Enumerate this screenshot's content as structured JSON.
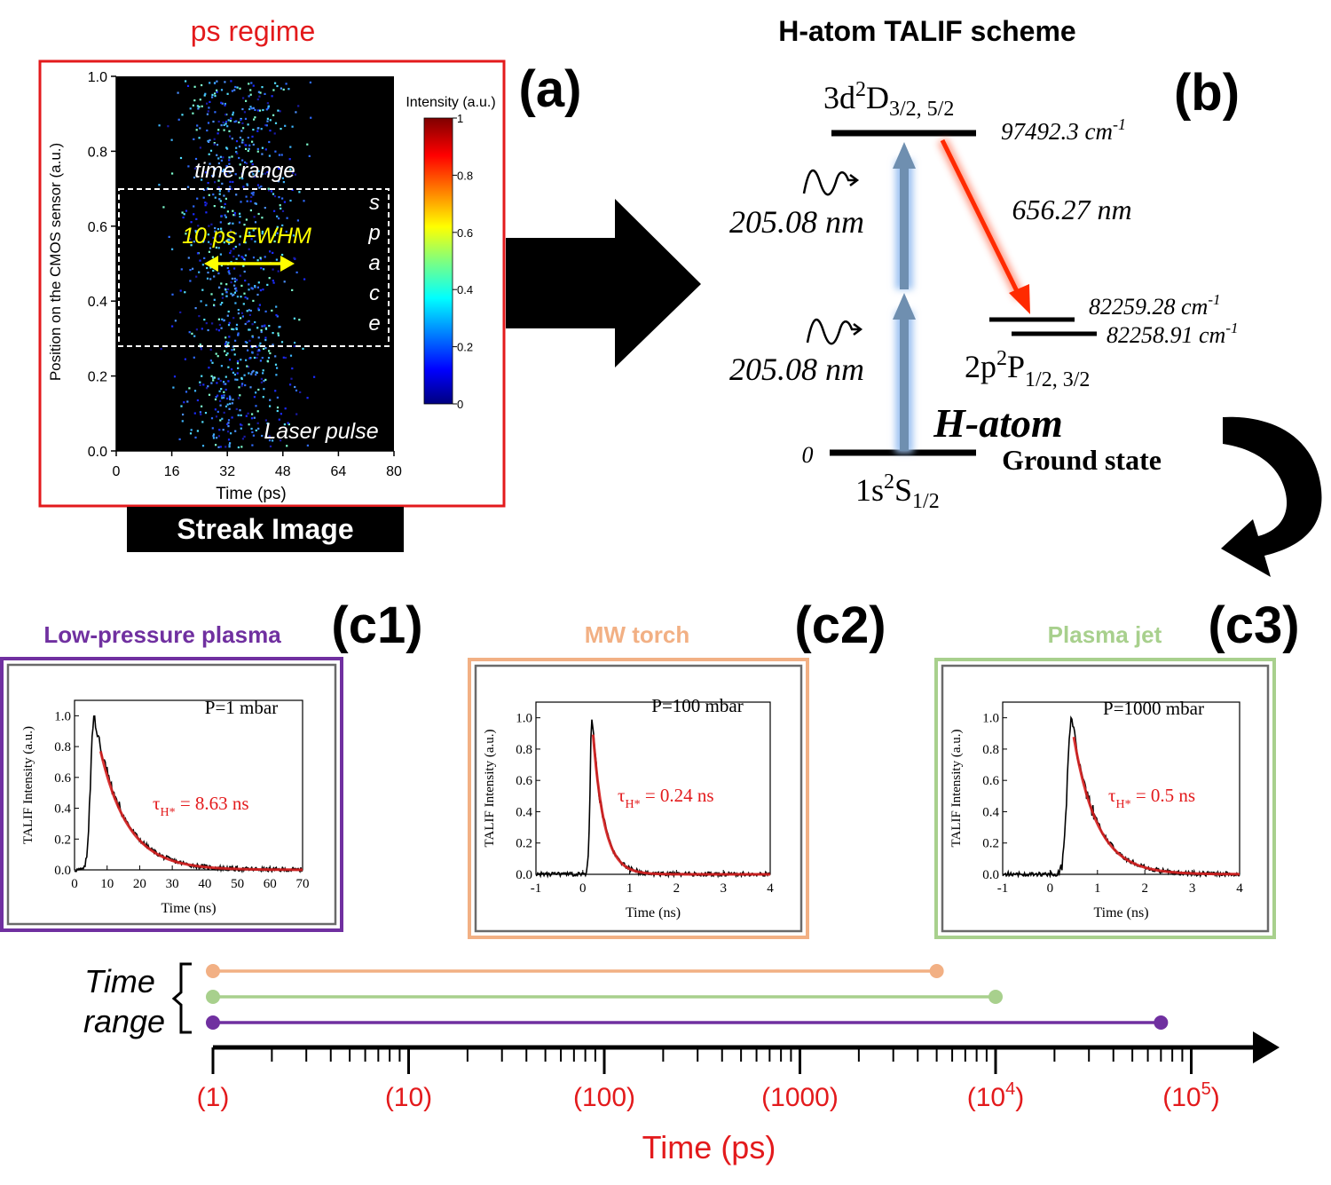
{
  "panel_a": {
    "heading": "ps regime",
    "tag": "(a)",
    "ylabel": "Position on the CMOS sensor (a.u.)",
    "xlabel": "Time (ps)",
    "yticks": [
      "0.0",
      "0.2",
      "0.4",
      "0.6",
      "0.8",
      "1.0"
    ],
    "xticks": [
      "0",
      "16",
      "32",
      "48",
      "64",
      "80"
    ],
    "colorbar_title": "Intensity (a.u.)",
    "colorbar_ticks": [
      "0",
      "0.2",
      "0.4",
      "0.6",
      "0.8",
      "1"
    ],
    "label_time_range": "time range",
    "label_fwhm": "10 ps FWHM",
    "label_space": [
      "s",
      "p",
      "a",
      "c",
      "e"
    ],
    "label_laser": "Laser pulse",
    "caption": "Streak Image"
  },
  "panel_b": {
    "heading": "H-atom TALIF scheme",
    "tag": "(b)",
    "upper_level": {
      "base": "3d",
      "sup": "2",
      "base2": "D",
      "sub": "3/2, 5/2"
    },
    "upper_energy": {
      "value": "97492.3 cm",
      "sup": "-1"
    },
    "wavelength_up1": "205.08 nm",
    "wavelength_up2": "205.08 nm",
    "emission": "656.27 nm",
    "mid_energy1": {
      "value": "82259.28 cm",
      "sup": "-1"
    },
    "mid_energy2": {
      "value": "82258.91 cm",
      "sup": "-1"
    },
    "mid_level": {
      "base": "2p",
      "sup": "2",
      "base2": "P",
      "sub": "1/2, 3/2"
    },
    "species": "H-atom",
    "ground_label": "Ground state",
    "zero": "0",
    "ground_level": {
      "base": "1s",
      "sup": "2",
      "base2": "S",
      "sub": "1/2"
    }
  },
  "insets": [
    {
      "title": "Low-pressure plasma",
      "tag": "(c1)",
      "pressure": "P=1 mbar",
      "tau": "τ",
      "tau_sub": "H*",
      "tau_value": " = 8.63 ns",
      "ylabel": "TALIF Intensity (a.u.)",
      "xlabel": "Time (ns)",
      "xticks": [
        "0",
        "10",
        "20",
        "30",
        "40",
        "50",
        "60",
        "70"
      ],
      "yticks": [
        "0.0",
        "0.2",
        "0.4",
        "0.6",
        "0.8",
        "1.0"
      ]
    },
    {
      "title": "MW torch",
      "tag": "(c2)",
      "pressure": "P=100 mbar",
      "tau": "τ",
      "tau_sub": "H*",
      "tau_value": " = 0.24 ns",
      "ylabel": "TALIF Intensity (a.u.)",
      "xlabel": "Time (ns)",
      "xticks": [
        "-1",
        "0",
        "1",
        "2",
        "3",
        "4"
      ],
      "yticks": [
        "0.0",
        "0.2",
        "0.4",
        "0.6",
        "0.8",
        "1.0"
      ]
    },
    {
      "title": "Plasma jet",
      "tag": "(c3)",
      "pressure": "P=1000 mbar",
      "tau": "τ",
      "tau_sub": "H*",
      "tau_value": " = 0.5 ns",
      "ylabel": "TALIF Intensity (a.u.)",
      "xlabel": "Time (ns)",
      "xticks": [
        "-1",
        "0",
        "1",
        "2",
        "3",
        "4"
      ],
      "yticks": [
        "0.0",
        "0.2",
        "0.4",
        "0.6",
        "0.8",
        "1.0"
      ]
    }
  ],
  "timeline": {
    "label_line1": "Time",
    "label_line2": "range",
    "ticks": [
      {
        "text": "(1)",
        "exp": ""
      },
      {
        "text": "(10)",
        "exp": ""
      },
      {
        "text": "(100)",
        "exp": ""
      },
      {
        "text": "(1000)",
        "exp": ""
      },
      {
        "text": "(10",
        "exp": "4",
        "close": ")"
      },
      {
        "text": "(10",
        "exp": "5",
        "close": ")"
      }
    ],
    "axis_title": "Time (ps)",
    "ranges_ps": [
      {
        "start": 1,
        "end": 5000,
        "color": "#f2b084"
      },
      {
        "start": 1,
        "end": 10000,
        "color": "#a8d08d"
      },
      {
        "start": 1,
        "end": 70000,
        "color": "#7030a0"
      }
    ]
  },
  "colors": {
    "red": "#e31a1c",
    "purple": "#7030a0",
    "orange": "#f2b084",
    "green": "#a8d08d",
    "fit_red": "#d62020",
    "yellow": "#ffff00"
  }
}
